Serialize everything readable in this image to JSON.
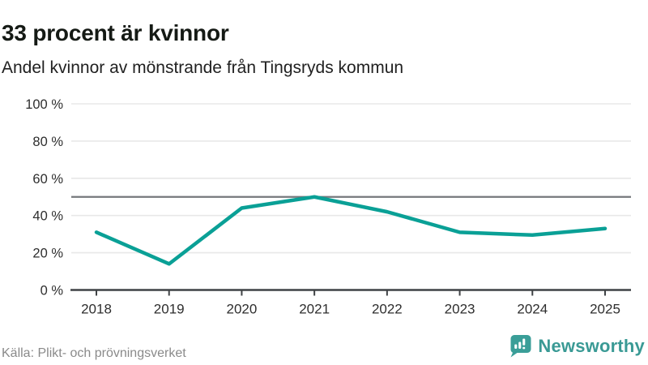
{
  "header": {
    "title": "33 procent är kvinnor",
    "subtitle": "Andel kvinnor av mönstrande från Tingsryds kommun"
  },
  "chart_data": {
    "type": "line",
    "title": "33 procent är kvinnor",
    "subtitle": "Andel kvinnor av mönstrande från Tingsryds kommun",
    "x": [
      2018,
      2019,
      2020,
      2021,
      2022,
      2023,
      2024,
      2025
    ],
    "values": [
      31,
      14,
      44,
      50,
      42,
      31,
      29.5,
      33
    ],
    "series_name": "Andel kvinnor av mönstrande",
    "unit": "%",
    "xlabel": "",
    "ylabel": "",
    "ylim": [
      0,
      100
    ],
    "y_ticks": [
      0,
      20,
      40,
      60,
      80,
      100
    ],
    "reference_line": 50,
    "grid": true,
    "legend": false,
    "line_color": "#0aa096",
    "colors": {
      "grid": "#e8e8e8",
      "reference": "#75787c",
      "axis": "#3f4245",
      "tick_label": "#2e2e2e"
    }
  },
  "footer": {
    "source": "Källa: Plikt- och prövningsverket",
    "brand": "Newsworthy",
    "brand_color": "#3a9a95"
  }
}
